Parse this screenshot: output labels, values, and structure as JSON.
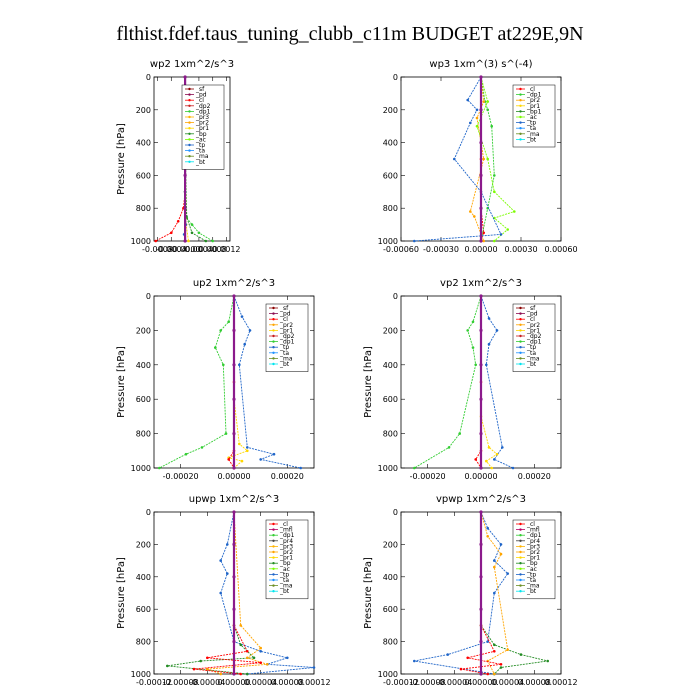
{
  "figure": {
    "title": "flthist.fdef.taus_tuning_clubb_c11m  BUDGET at229E,9N"
  },
  "colors": {
    "sf": "#8b0000",
    "pd": "#8b0a50",
    "cl": "#ff0000",
    "dp2": "#c81e1e",
    "dp1": "#32cd32",
    "pr3": "#ffb400",
    "pr2": "#ffa500",
    "pr1": "#ffd700",
    "bp": "#228b22",
    "ac": "#7cfc00",
    "tp": "#1e64c8",
    "ta": "#1e90ff",
    "ma": "#6b8e23",
    "bt": "#00e5ee",
    "mfl": "#b40064",
    "dp4": "#ff3c3c",
    "center": "#8b1a8b"
  },
  "chart_data": [
    {
      "type": "line",
      "title": "wp2   1xm^2/s^3",
      "ylabel": "Pressure  [hPa]",
      "xlim": [
        -0.0009,
        0.0013
      ],
      "ylim": [
        1000,
        0
      ],
      "xticks": [
        -0.0008,
        -0.0004,
        0,
        0.0004,
        0.0008,
        0.0012
      ],
      "xtick_labels": [
        "-0.0008",
        "-0.0004",
        "-0.0000",
        "0.0004",
        "0.0008",
        "0.0012"
      ],
      "yticks": [
        0,
        200,
        400,
        600,
        800,
        1000
      ],
      "legend_position": "top-right",
      "legend": [
        "_sf",
        "_pd",
        "_cl",
        "_dp2",
        "_dp1",
        "_pr3",
        "_pr2",
        "_pr1",
        "_bp",
        "_ac",
        "_tp",
        "_ta",
        "_ma",
        "_bt"
      ],
      "series": [
        {
          "name": "_sf",
          "key": "sf",
          "x": [
            0,
            0,
            0,
            0,
            0,
            0
          ],
          "y": [
            0,
            200,
            400,
            600,
            800,
            1000
          ]
        },
        {
          "name": "_cl",
          "key": "cl",
          "x": [
            0,
            0,
            0,
            -5e-05,
            -0.0002,
            -0.0004,
            -0.00085
          ],
          "y": [
            0,
            400,
            700,
            800,
            880,
            950,
            1000
          ]
        },
        {
          "name": "_dp1",
          "key": "dp1",
          "x": [
            0,
            2e-05,
            0,
            5e-05,
            0.0002,
            0.0004,
            0.0008
          ],
          "y": [
            0,
            180,
            400,
            860,
            900,
            950,
            1000
          ]
        },
        {
          "name": "_pr1",
          "key": "pr1",
          "x": [
            0,
            -3e-05,
            3e-05,
            0,
            3e-05,
            0.0001
          ],
          "y": [
            0,
            160,
            200,
            400,
            900,
            1000
          ]
        },
        {
          "name": "_bp",
          "key": "bp",
          "x": [
            0,
            0,
            4e-05,
            0.0002,
            0.0006
          ],
          "y": [
            0,
            700,
            850,
            950,
            1000
          ]
        },
        {
          "name": "_tp",
          "key": "tp",
          "x": [
            0,
            0,
            2e-05,
            -3e-05,
            0
          ],
          "y": [
            0,
            700,
            900,
            960,
            1000
          ]
        },
        {
          "name": "_bt",
          "key": "center",
          "x": [
            0,
            0,
            0,
            0,
            0,
            0
          ],
          "y": [
            0,
            200,
            400,
            600,
            800,
            1000
          ]
        }
      ]
    },
    {
      "type": "line",
      "title": "wp3   1xm^(3) s^(-4)",
      "ylabel": "",
      "xlim": [
        -0.0006,
        0.0006
      ],
      "ylim": [
        1000,
        0
      ],
      "xticks": [
        -0.0006,
        -0.0003,
        0,
        0.0003,
        0.0006
      ],
      "xtick_labels": [
        "-0.00060",
        "-0.00030",
        "0.00000",
        "0.00030",
        "0.00060"
      ],
      "yticks": [
        0,
        200,
        400,
        600,
        800,
        1000
      ],
      "legend_position": "top-right",
      "legend": [
        "_cl",
        "_dp1",
        "_pr2",
        "_pr1",
        "_bp1",
        "_ac",
        "_tp",
        "_ta",
        "_ma",
        "_bt"
      ],
      "series": [
        {
          "name": "_cl",
          "key": "cl",
          "x": [
            0,
            0,
            0,
            0,
            2e-05,
            0
          ],
          "y": [
            0,
            200,
            500,
            800,
            950,
            1000
          ]
        },
        {
          "name": "_dp1",
          "key": "dp1",
          "x": [
            0,
            3e-05,
            5e-05,
            8e-05,
            0.0001,
            5e-05,
            0
          ],
          "y": [
            0,
            150,
            200,
            300,
            600,
            800,
            1000
          ]
        },
        {
          "name": "_pr2",
          "key": "pr2",
          "x": [
            0,
            2e-05,
            -3e-05,
            2e-05,
            -8e-05,
            -5e-05,
            2e-05
          ],
          "y": [
            0,
            150,
            250,
            500,
            820,
            850,
            1000
          ]
        },
        {
          "name": "_ac",
          "key": "ac",
          "x": [
            0,
            5e-05,
            -3e-05,
            5e-05,
            0.0001,
            0.00025,
            0.0001,
            0.0002,
            0.0001
          ],
          "y": [
            0,
            150,
            300,
            500,
            700,
            820,
            860,
            930,
            1000
          ]
        },
        {
          "name": "_tp",
          "key": "tp",
          "x": [
            0,
            -0.0001,
            -3e-05,
            -8e-05,
            -0.0002,
            0,
            0.00015,
            -0.0005
          ],
          "y": [
            0,
            140,
            200,
            280,
            500,
            700,
            960,
            1000
          ]
        },
        {
          "name": "_bt",
          "key": "center",
          "x": [
            0,
            0,
            0,
            0,
            0,
            0
          ],
          "y": [
            0,
            200,
            400,
            600,
            800,
            1000
          ]
        }
      ]
    },
    {
      "type": "line",
      "title": "up2   1xm^2/s^3",
      "ylabel": "Pressure  [hPa]",
      "xlim": [
        -0.0003,
        0.0003
      ],
      "ylim": [
        1000,
        0
      ],
      "xticks": [
        -0.0002,
        0,
        0.0002
      ],
      "xtick_labels": [
        "-0.00020",
        "0.00000",
        "0.00020"
      ],
      "yticks": [
        0,
        200,
        400,
        600,
        800,
        1000
      ],
      "legend_position": "top-right",
      "legend": [
        "_sf",
        "_pd",
        "_cl",
        "_pr2",
        "_pr1",
        "_dp2",
        "_dp1",
        "_tp",
        "_ta",
        "_ma",
        "_bt"
      ],
      "series": [
        {
          "name": "_dp1",
          "key": "dp1",
          "x": [
            0,
            -2e-05,
            -5e-05,
            -7e-05,
            -4e-05,
            -3e-05,
            -0.00012,
            -0.00018,
            -0.00028
          ],
          "y": [
            0,
            150,
            200,
            300,
            400,
            800,
            880,
            920,
            1000
          ]
        },
        {
          "name": "_tp",
          "key": "tp",
          "x": [
            0,
            3e-05,
            6e-05,
            4e-05,
            2e-05,
            5e-05,
            0.00015,
            0.0001,
            0.00025
          ],
          "y": [
            0,
            120,
            200,
            280,
            400,
            880,
            920,
            950,
            1000
          ]
        },
        {
          "name": "_pr1",
          "key": "pr1",
          "x": [
            0,
            0,
            2e-05,
            5e-05,
            -2e-05,
            3e-05,
            0
          ],
          "y": [
            0,
            600,
            860,
            900,
            940,
            960,
            1000
          ]
        },
        {
          "name": "_cl",
          "key": "cl",
          "x": [
            0,
            0,
            0,
            -2e-05,
            0
          ],
          "y": [
            0,
            500,
            900,
            950,
            1000
          ]
        },
        {
          "name": "_bt",
          "key": "center",
          "x": [
            0,
            0,
            0,
            0,
            0,
            0
          ],
          "y": [
            0,
            200,
            400,
            600,
            800,
            1000
          ]
        }
      ]
    },
    {
      "type": "line",
      "title": "vp2   1xm^2/s^3",
      "ylabel": "Pressure  [hPa]",
      "xlim": [
        -0.0003,
        0.0003
      ],
      "ylim": [
        1000,
        0
      ],
      "xticks": [
        -0.0002,
        0,
        0.0002
      ],
      "xtick_labels": [
        "-0.00020",
        "0.00000",
        "0.00020"
      ],
      "yticks": [
        0,
        200,
        400,
        600,
        800,
        1000
      ],
      "legend_position": "top-right",
      "legend": [
        "_sf",
        "_pd",
        "_cl",
        "_pr2",
        "_pr1",
        "_dp2",
        "_dp1",
        "_tp",
        "_ta",
        "_ma",
        "_bt"
      ],
      "series": [
        {
          "name": "_dp1",
          "key": "dp1",
          "x": [
            0,
            -3e-05,
            -5e-05,
            -3e-05,
            -2e-05,
            -8e-05,
            -0.00012,
            -0.00025
          ],
          "y": [
            0,
            150,
            200,
            300,
            400,
            800,
            880,
            1000
          ]
        },
        {
          "name": "_tp",
          "key": "tp",
          "x": [
            0,
            3e-05,
            6e-05,
            3e-05,
            2e-05,
            8e-05,
            5e-05,
            0.00012
          ],
          "y": [
            0,
            130,
            200,
            280,
            400,
            880,
            950,
            1000
          ]
        },
        {
          "name": "_pr1",
          "key": "pr1",
          "x": [
            0,
            0,
            3e-05,
            6e-05,
            2e-05,
            4e-05
          ],
          "y": [
            0,
            700,
            880,
            920,
            960,
            1000
          ]
        },
        {
          "name": "_cl",
          "key": "cl",
          "x": [
            0,
            0,
            0,
            -2e-05,
            0
          ],
          "y": [
            0,
            500,
            900,
            950,
            1000
          ]
        },
        {
          "name": "_bt",
          "key": "center",
          "x": [
            0,
            0,
            0,
            0,
            0,
            0
          ],
          "y": [
            0,
            200,
            400,
            600,
            800,
            1000
          ]
        }
      ]
    },
    {
      "type": "line",
      "title": "upwp   1xm^2/s^3",
      "ylabel": "Pressure  [hPa]",
      "xlim": [
        -0.00012,
        0.00012
      ],
      "ylim": [
        1000,
        0
      ],
      "xticks": [
        -0.00012,
        -8e-05,
        -4e-05,
        0,
        4e-05,
        8e-05,
        0.00012
      ],
      "xtick_labels": [
        "-0.00012",
        "-0.00008",
        "-0.00004",
        "0.00000",
        "0.00004",
        "0.00008",
        "0.00012"
      ],
      "yticks": [
        0,
        200,
        400,
        600,
        800,
        1000
      ],
      "legend_position": "top-right",
      "legend": [
        "_cl",
        "_mfl",
        "_dp1",
        "_pr4",
        "_pr3",
        "_pr2",
        "_pr1",
        "_bp",
        "_ac",
        "_tp",
        "_ta",
        "_ma",
        "_bt"
      ],
      "series": [
        {
          "name": "_tp",
          "key": "tp",
          "x": [
            0,
            -1e-05,
            -2e-05,
            -1e-05,
            -2e-05,
            0,
            4e-05,
            8e-05,
            5e-05,
            0.00012,
            2e-05
          ],
          "y": [
            0,
            200,
            300,
            380,
            500,
            800,
            860,
            900,
            940,
            960,
            1000
          ]
        },
        {
          "name": "_bp",
          "key": "bp",
          "x": [
            0,
            0,
            1e-05,
            3e-05,
            -5e-05,
            -0.0001,
            2e-05
          ],
          "y": [
            0,
            700,
            820,
            900,
            920,
            950,
            1000
          ]
        },
        {
          "name": "_pr2",
          "key": "pr2",
          "x": [
            0,
            1e-05,
            4e-05,
            2e-05,
            5e-05,
            -4e-05,
            -2e-05
          ],
          "y": [
            0,
            700,
            840,
            900,
            940,
            970,
            1000
          ]
        },
        {
          "name": "_cl",
          "key": "cl",
          "x": [
            0,
            0,
            2e-05,
            -4e-05,
            4e-05,
            -6e-05,
            1e-05
          ],
          "y": [
            0,
            700,
            860,
            900,
            930,
            970,
            1000
          ]
        },
        {
          "name": "_bt",
          "key": "center",
          "x": [
            0,
            0,
            0,
            0,
            0,
            0
          ],
          "y": [
            0,
            200,
            400,
            600,
            800,
            1000
          ]
        }
      ]
    },
    {
      "type": "line",
      "title": "vpwp   1xm^2/s^3",
      "ylabel": "Pressure  [hPa]",
      "xlim": [
        -0.00012,
        0.00012
      ],
      "ylim": [
        1000,
        0
      ],
      "xticks": [
        -0.00012,
        -8e-05,
        -4e-05,
        0,
        4e-05,
        8e-05,
        0.00012
      ],
      "xtick_labels": [
        "-0.00012",
        "-0.00008",
        "-0.00004",
        "0.00000",
        "0.00004",
        "0.00008",
        "0.00012"
      ],
      "yticks": [
        0,
        200,
        400,
        600,
        800,
        1000
      ],
      "legend_position": "top-right",
      "legend": [
        "_cl",
        "_mfl",
        "_dp1",
        "_pr4",
        "_pr3",
        "_pr2",
        "_pr1",
        "_bp",
        "_ac",
        "_tp",
        "_ta",
        "_ma",
        "_bt"
      ],
      "series": [
        {
          "name": "_tp",
          "key": "tp",
          "x": [
            0,
            1e-05,
            3e-05,
            2e-05,
            4e-05,
            2e-05,
            1e-05,
            -5e-05,
            -0.0001,
            2e-05
          ],
          "y": [
            0,
            100,
            200,
            300,
            380,
            500,
            800,
            880,
            920,
            1000
          ]
        },
        {
          "name": "_bp",
          "key": "bp",
          "x": [
            0,
            0,
            2e-05,
            6e-05,
            0.0001,
            3e-05,
            2e-05
          ],
          "y": [
            0,
            700,
            820,
            880,
            920,
            960,
            1000
          ]
        },
        {
          "name": "_pr2",
          "key": "pr2",
          "x": [
            0,
            1e-05,
            3e-05,
            2e-05,
            4e-05,
            1e-05,
            2e-05
          ],
          "y": [
            0,
            150,
            260,
            340,
            850,
            920,
            1000
          ]
        },
        {
          "name": "_cl",
          "key": "cl",
          "x": [
            0,
            0,
            2e-05,
            -2e-05,
            3e-05,
            -3e-05,
            1e-05
          ],
          "y": [
            0,
            700,
            860,
            900,
            940,
            970,
            1000
          ]
        },
        {
          "name": "_bt",
          "key": "center",
          "x": [
            0,
            0,
            0,
            0,
            0,
            0
          ],
          "y": [
            0,
            200,
            400,
            600,
            800,
            1000
          ]
        }
      ]
    }
  ]
}
